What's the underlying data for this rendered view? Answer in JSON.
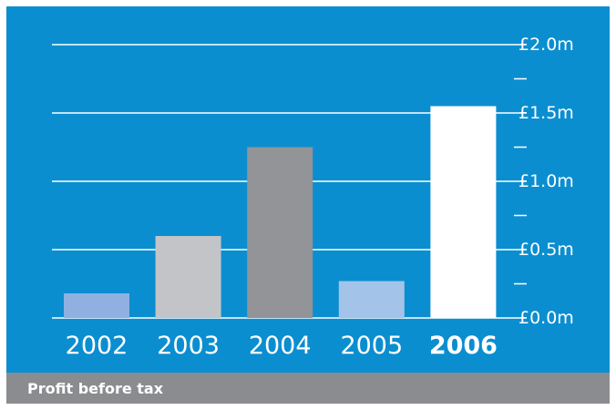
{
  "chart_data": {
    "type": "bar",
    "categories": [
      "2002",
      "2003",
      "2004",
      "2005",
      "2006"
    ],
    "values": [
      0.18,
      0.6,
      1.25,
      0.27,
      1.55
    ],
    "ylim": [
      0,
      2.0
    ],
    "y_ticks": [
      {
        "value": 0.0,
        "label": "£0.0m"
      },
      {
        "value": 0.5,
        "label": "£0.5m"
      },
      {
        "value": 1.0,
        "label": "£1.0m"
      },
      {
        "value": 1.5,
        "label": "£1.5m"
      },
      {
        "value": 2.0,
        "label": "£2.0m"
      }
    ],
    "minor_ticks": [
      0.25,
      0.75,
      1.25,
      1.75
    ],
    "grid": true,
    "highlight_category": "2006",
    "bar_colors": [
      "#8fb0e0",
      "#c2c4c7",
      "#929497",
      "#a3c4e8",
      "#ffffff"
    ],
    "colors": {
      "background": "#0b8ed0",
      "grid": "#ffffff",
      "text": "#ffffff",
      "caption_bar": "#8a8c8f"
    }
  },
  "caption": "Profit before tax"
}
